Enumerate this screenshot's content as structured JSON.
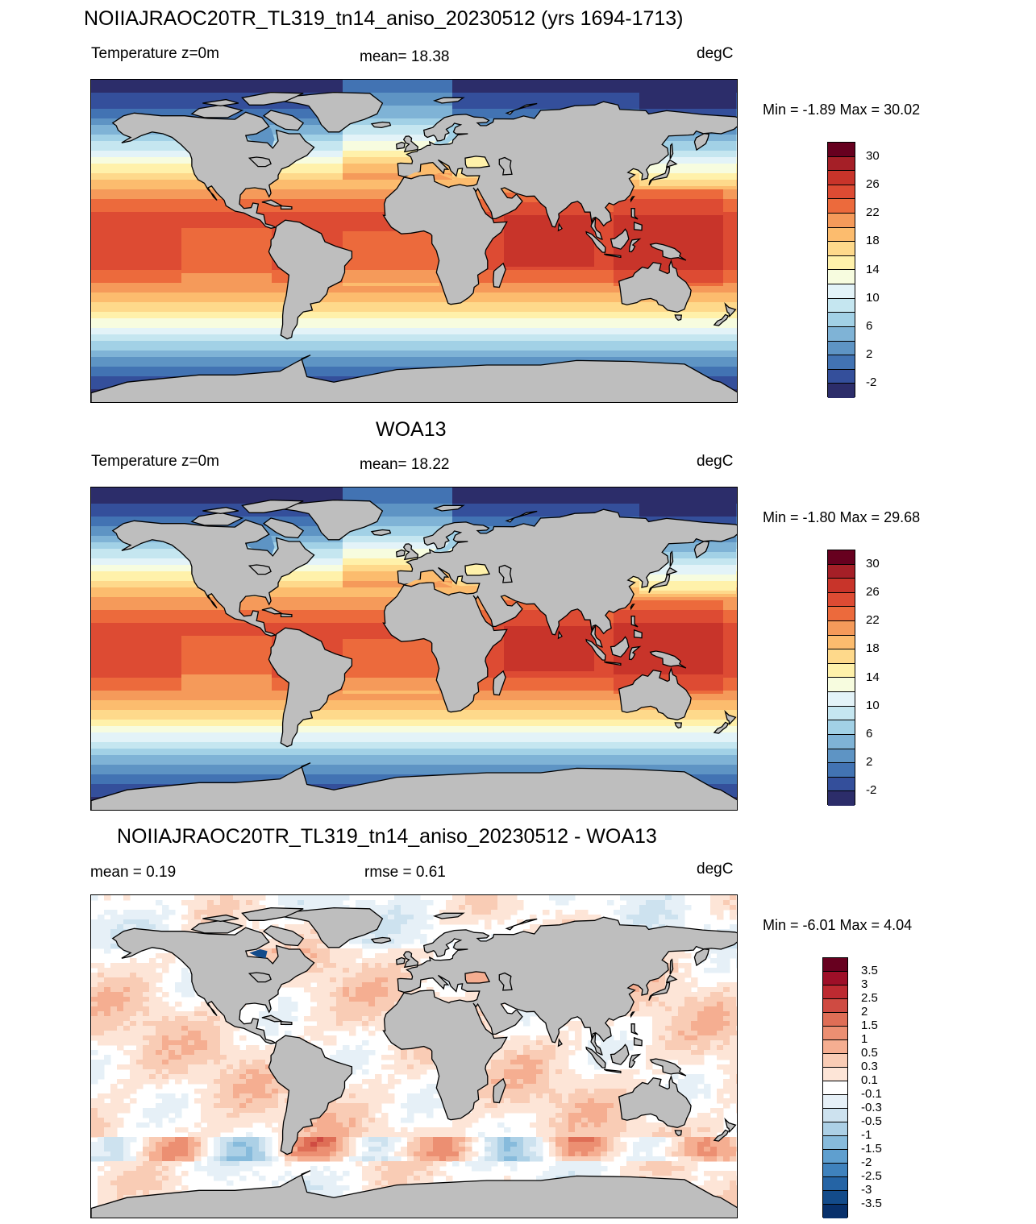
{
  "panel1": {
    "title": "NOIIAJRAOC20TR_TL319_tn14_aniso_20230512 (yrs 1694-1713)",
    "left": "Temperature z=0m",
    "center": "mean=  18.38",
    "right": "degC",
    "minmax": "Min =  -1.89 Max =  30.02"
  },
  "panel2": {
    "title": "WOA13",
    "left": "Temperature z=0m",
    "center": "mean=  18.22",
    "right": "degC",
    "minmax": "Min =  -1.80 Max =  29.68"
  },
  "panel3": {
    "title": "NOIIAJRAOC20TR_TL319_tn14_aniso_20230512 - WOA13",
    "left": "mean =   0.19",
    "center": "rmse =   0.61",
    "right": "degC",
    "minmax": "Min =  -6.01 Max =   4.04"
  },
  "temp_colorbar": {
    "labels": [
      "30",
      "26",
      "22",
      "18",
      "14",
      "10",
      "6",
      "2",
      "-2"
    ],
    "colors": [
      "#67001f",
      "#a51f27",
      "#c8342a",
      "#dd4b33",
      "#ec6a3c",
      "#f59a5a",
      "#fcbc6e",
      "#fed98b",
      "#fff1aa",
      "#f7fcdf",
      "#e3f3f8",
      "#c5e6f0",
      "#a2d1e6",
      "#7fb3d6",
      "#5e94c4",
      "#4273b3",
      "#344f9b",
      "#2c2d6a"
    ]
  },
  "diff_colorbar": {
    "labels": [
      "3.5",
      "3",
      "2.5",
      "2",
      "1.5",
      "1",
      "0.5",
      "0.3",
      "0.1",
      "-0.1",
      "-0.3",
      "-0.5",
      "-1",
      "-1.5",
      "-2",
      "-2.5",
      "-3",
      "-3.5"
    ],
    "colors": [
      "#67001f",
      "#9e0f28",
      "#bd2a31",
      "#cf4b42",
      "#df6e56",
      "#ec8f72",
      "#f5ae91",
      "#f9ccb5",
      "#fde5d7",
      "#ffffff",
      "#e6f0f7",
      "#cde2ef",
      "#acd0e6",
      "#87bbdc",
      "#5f9fcf",
      "#3f82bd",
      "#2564a5",
      "#134b8a",
      "#08306b"
    ]
  }
}
